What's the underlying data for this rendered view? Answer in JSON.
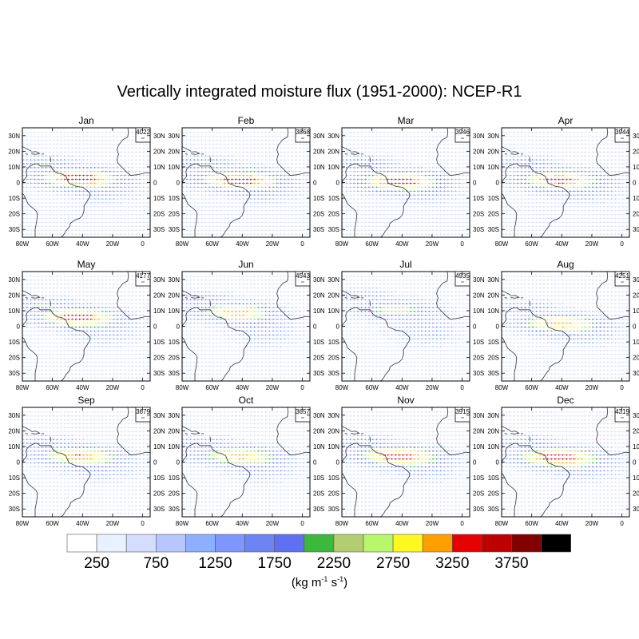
{
  "chart_data": {
    "type": "vector-map-panels",
    "title": "Vertically integrated moisture flux (1951-2000): NCEP-R1",
    "units_label": "(kg m-1 s-1)",
    "units": {
      "base": "(kg m",
      "exp1": "-1",
      "mid": " s",
      "exp2": "-1",
      "end": ")"
    },
    "lon_range": [
      -80,
      5
    ],
    "lat_range": [
      -35,
      35
    ],
    "x_ticks": [
      "80W",
      "60W",
      "40W",
      "20W",
      "0"
    ],
    "x_tick_values": [
      -80,
      -60,
      -40,
      -20,
      0
    ],
    "y_ticks": [
      "30N",
      "20N",
      "10N",
      "0",
      "10S",
      "20S",
      "30S"
    ],
    "y_tick_values": [
      30,
      20,
      10,
      0,
      -10,
      -20,
      -30
    ],
    "panels": [
      {
        "month": "Jan",
        "ref_vector": "4022",
        "jet_lat": 3,
        "max": 3600
      },
      {
        "month": "Feb",
        "ref_vector": "3868",
        "jet_lat": 2,
        "max": 3500
      },
      {
        "month": "Mar",
        "ref_vector": "3946",
        "jet_lat": 1,
        "max": 3400
      },
      {
        "month": "Apr",
        "ref_vector": "3944",
        "jet_lat": 2,
        "max": 3300
      },
      {
        "month": "May",
        "ref_vector": "4177",
        "jet_lat": 6,
        "max": 3700
      },
      {
        "month": "Jun",
        "ref_vector": "4543",
        "jet_lat": 9,
        "max": 3300
      },
      {
        "month": "Jul",
        "ref_vector": "4935",
        "jet_lat": 11,
        "max": 2600
      },
      {
        "month": "Aug",
        "ref_vector": "4251",
        "jet_lat": 2,
        "max": 3000
      },
      {
        "month": "Sep",
        "ref_vector": "3679",
        "jet_lat": 4,
        "max": 3200
      },
      {
        "month": "Oct",
        "ref_vector": "3657",
        "jet_lat": 4,
        "max": 3000
      },
      {
        "month": "Nov",
        "ref_vector": "3915",
        "jet_lat": 4,
        "max": 3500
      },
      {
        "month": "Dec",
        "ref_vector": "4319",
        "jet_lat": 3,
        "max": 3600
      }
    ],
    "colorbar": {
      "levels": [
        250,
        500,
        750,
        1000,
        1250,
        1500,
        1750,
        2000,
        2250,
        2500,
        2750,
        3000,
        3250,
        3500,
        3750,
        4000
      ],
      "labels": [
        "250",
        "750",
        "1250",
        "1750",
        "2250",
        "2750",
        "3250",
        "3750"
      ],
      "colors": [
        "#ffffff",
        "#e8f2ff",
        "#d4dcff",
        "#b8c6ff",
        "#8cb0ff",
        "#7e96ff",
        "#6c84f4",
        "#6070f2",
        "#3cb83c",
        "#b2ce6e",
        "#b8f66a",
        "#fff81e",
        "#ffa000",
        "#e60000",
        "#be0000",
        "#820000",
        "#000000"
      ]
    }
  }
}
